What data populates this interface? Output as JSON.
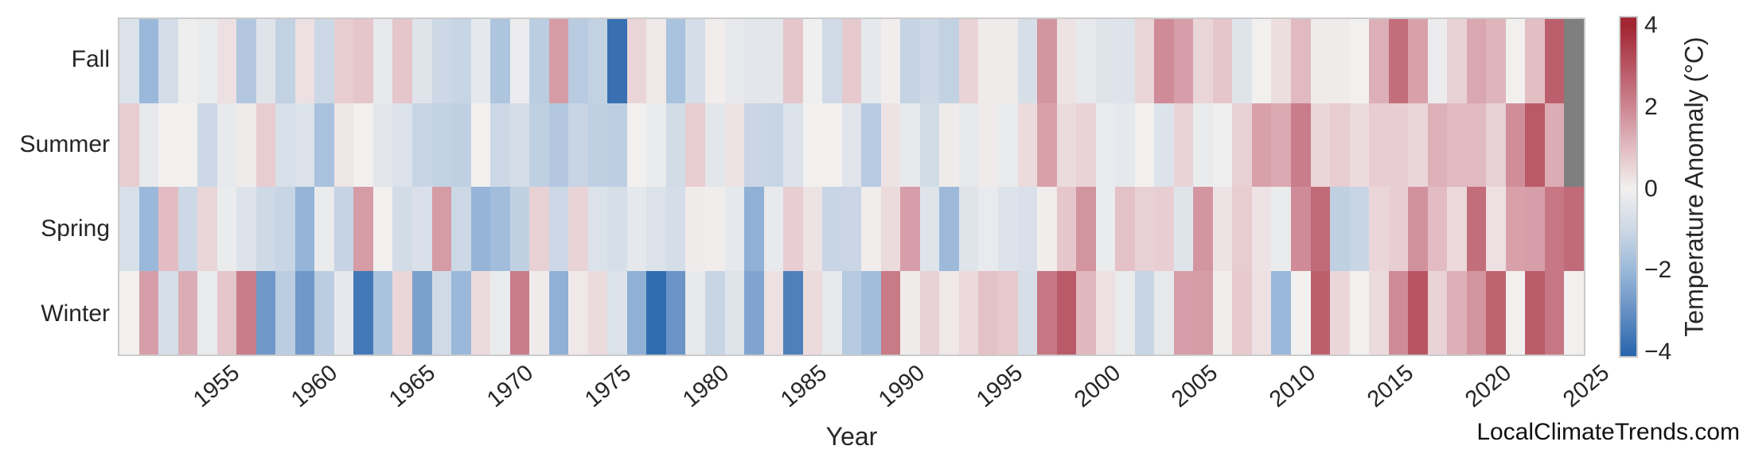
{
  "watermark": "LocalClimateTrends.com",
  "chart_data": {
    "type": "heatmap",
    "title": "",
    "xlabel": "Year",
    "ylabel": "",
    "rows": [
      "Fall",
      "Summer",
      "Spring",
      "Winter"
    ],
    "years": [
      1951,
      1952,
      1953,
      1954,
      1955,
      1956,
      1957,
      1958,
      1959,
      1960,
      1961,
      1962,
      1963,
      1964,
      1965,
      1966,
      1967,
      1968,
      1969,
      1970,
      1971,
      1972,
      1973,
      1974,
      1975,
      1976,
      1977,
      1978,
      1979,
      1980,
      1981,
      1982,
      1983,
      1984,
      1985,
      1986,
      1987,
      1988,
      1989,
      1990,
      1991,
      1992,
      1993,
      1994,
      1995,
      1996,
      1997,
      1998,
      1999,
      2000,
      2001,
      2002,
      2003,
      2004,
      2005,
      2006,
      2007,
      2008,
      2009,
      2010,
      2011,
      2012,
      2013,
      2014,
      2015,
      2016,
      2017,
      2018,
      2019,
      2020,
      2021,
      2022,
      2023,
      2024,
      2025
    ],
    "x_tick_years": [
      1955,
      1960,
      1965,
      1970,
      1975,
      1980,
      1985,
      1990,
      1995,
      2000,
      2005,
      2010,
      2015,
      2020,
      2025
    ],
    "x_tick_labels": [
      "1955",
      "1960",
      "1965",
      "1970",
      "1975",
      "1980",
      "1985",
      "1990",
      "1995",
      "2000",
      "2005",
      "2010",
      "2015",
      "2020",
      "2025"
    ],
    "series": [
      {
        "name": "Fall",
        "values": [
          -0.6,
          -2.0,
          -0.8,
          -0.1,
          -0.2,
          0.3,
          -1.5,
          -0.5,
          -1.2,
          0.3,
          -1.0,
          0.7,
          0.8,
          -0.3,
          0.8,
          -0.5,
          -1.0,
          -1.1,
          -0.35,
          -1.6,
          -0.15,
          -1.35,
          1.6,
          -1.4,
          -1.2,
          -3.8,
          0.5,
          0.15,
          -1.7,
          -0.8,
          0.05,
          -0.3,
          -0.4,
          -0.4,
          0.8,
          -0.05,
          -0.9,
          0.75,
          -0.35,
          0.05,
          -1.15,
          -1.0,
          -1.2,
          0.55,
          0.1,
          0.1,
          -0.75,
          1.7,
          0.25,
          -0.3,
          -0.5,
          -0.55,
          0.5,
          1.9,
          1.55,
          0.5,
          0.8,
          -0.5,
          0.0,
          0.35,
          1.05,
          0.1,
          0.1,
          0.0,
          1.25,
          2.5,
          1.5,
          -0.15,
          0.6,
          1.4,
          1.15,
          0.0,
          0.95,
          2.8,
          null
        ]
      },
      {
        "name": "Summer",
        "values": [
          0.7,
          -0.3,
          0.0,
          0.0,
          -1.0,
          -0.3,
          0.1,
          0.7,
          -0.7,
          -0.6,
          -1.7,
          0.2,
          0.0,
          -0.4,
          -0.6,
          -1.1,
          -1.2,
          -1.25,
          0.0,
          -1.0,
          -0.8,
          -1.25,
          -1.5,
          -1.1,
          -1.25,
          -1.3,
          0.0,
          -0.2,
          -0.85,
          0.7,
          -0.4,
          0.25,
          -1.05,
          -1.1,
          -0.6,
          0.0,
          0.0,
          -0.45,
          -1.4,
          0.25,
          -0.3,
          -0.85,
          0.1,
          -0.3,
          0.1,
          -0.2,
          0.4,
          1.5,
          0.4,
          0.55,
          -0.25,
          -0.35,
          0.0,
          -0.55,
          0.55,
          -0.2,
          -0.05,
          0.6,
          1.5,
          1.35,
          2.2,
          0.5,
          0.7,
          0.4,
          0.65,
          0.65,
          0.5,
          1.2,
          1.05,
          1.05,
          0.6,
          1.85,
          2.9,
          1.3,
          null
        ]
      },
      {
        "name": "Spring",
        "values": [
          -0.7,
          -2.0,
          1.0,
          -1.0,
          0.5,
          -0.2,
          -0.55,
          -0.95,
          -1.1,
          -2.1,
          -0.2,
          -1.15,
          1.6,
          0.0,
          -0.85,
          -0.65,
          1.6,
          -1.0,
          -2.1,
          -1.85,
          -1.25,
          0.6,
          -1.0,
          0.55,
          -0.6,
          -0.75,
          -0.35,
          -0.6,
          -0.8,
          0.1,
          0.05,
          -0.35,
          -2.2,
          -0.3,
          0.65,
          0.25,
          -1.1,
          -1.05,
          0.05,
          0.4,
          1.55,
          -0.5,
          -1.95,
          -0.5,
          -0.25,
          -0.55,
          -0.65,
          0.05,
          0.8,
          1.75,
          -0.2,
          0.9,
          0.6,
          0.65,
          -0.5,
          1.7,
          0.25,
          0.7,
          0.25,
          -0.2,
          1.9,
          2.55,
          -1.25,
          -1.1,
          0.5,
          0.65,
          1.8,
          1.0,
          0.45,
          2.5,
          0.3,
          1.5,
          1.55,
          2.3,
          2.55
        ]
      },
      {
        "name": "Winter",
        "values": [
          0.0,
          1.55,
          -0.75,
          1.3,
          -0.25,
          0.8,
          2.2,
          -2.8,
          -1.35,
          -2.8,
          -1.35,
          -0.35,
          -3.6,
          -1.7,
          0.5,
          -2.6,
          -0.9,
          -2.0,
          0.4,
          -0.2,
          2.2,
          0.1,
          -2.2,
          0.15,
          0.4,
          -0.6,
          -2.2,
          -3.9,
          -2.9,
          -0.3,
          -1.1,
          -0.5,
          -2.5,
          0.3,
          -3.4,
          0.4,
          -0.3,
          -1.45,
          -1.85,
          2.25,
          0.1,
          0.6,
          0.15,
          0.45,
          0.9,
          0.75,
          -0.75,
          2.3,
          2.9,
          1.1,
          0.3,
          -0.2,
          -1.1,
          -0.3,
          1.55,
          1.6,
          0.05,
          0.75,
          0.3,
          -2.0,
          0.0,
          2.8,
          0.5,
          0.0,
          0.4,
          1.9,
          3.0,
          0.55,
          1.25,
          1.7,
          2.7,
          0.0,
          2.85,
          2.3,
          0.0
        ]
      }
    ],
    "colorbar": {
      "label": "Temperature Anomaly (°C)",
      "tick_labels": [
        "4",
        "2",
        "0",
        "−2",
        "−4"
      ],
      "tick_values": [
        4,
        2,
        0,
        -2,
        -4
      ],
      "vmin": -4,
      "vmax": 4,
      "bar_vmin": -4.1,
      "bar_vmax": 4.2
    },
    "colormap": {
      "name": "blue-white-red diverging",
      "nan_color": "#7f7f7f",
      "anchors": [
        [
          -4,
          "#2c68ae"
        ],
        [
          -3,
          "#6690c4"
        ],
        [
          -2,
          "#9ab8d9"
        ],
        [
          -1,
          "#ccd8e6"
        ],
        [
          0,
          "#f2f0ef"
        ],
        [
          1,
          "#e2bcc2"
        ],
        [
          2,
          "#cd8692"
        ],
        [
          3,
          "#b85563"
        ],
        [
          4,
          "#a22633"
        ]
      ]
    },
    "legend_position": "right-colorbar",
    "grid": false
  }
}
